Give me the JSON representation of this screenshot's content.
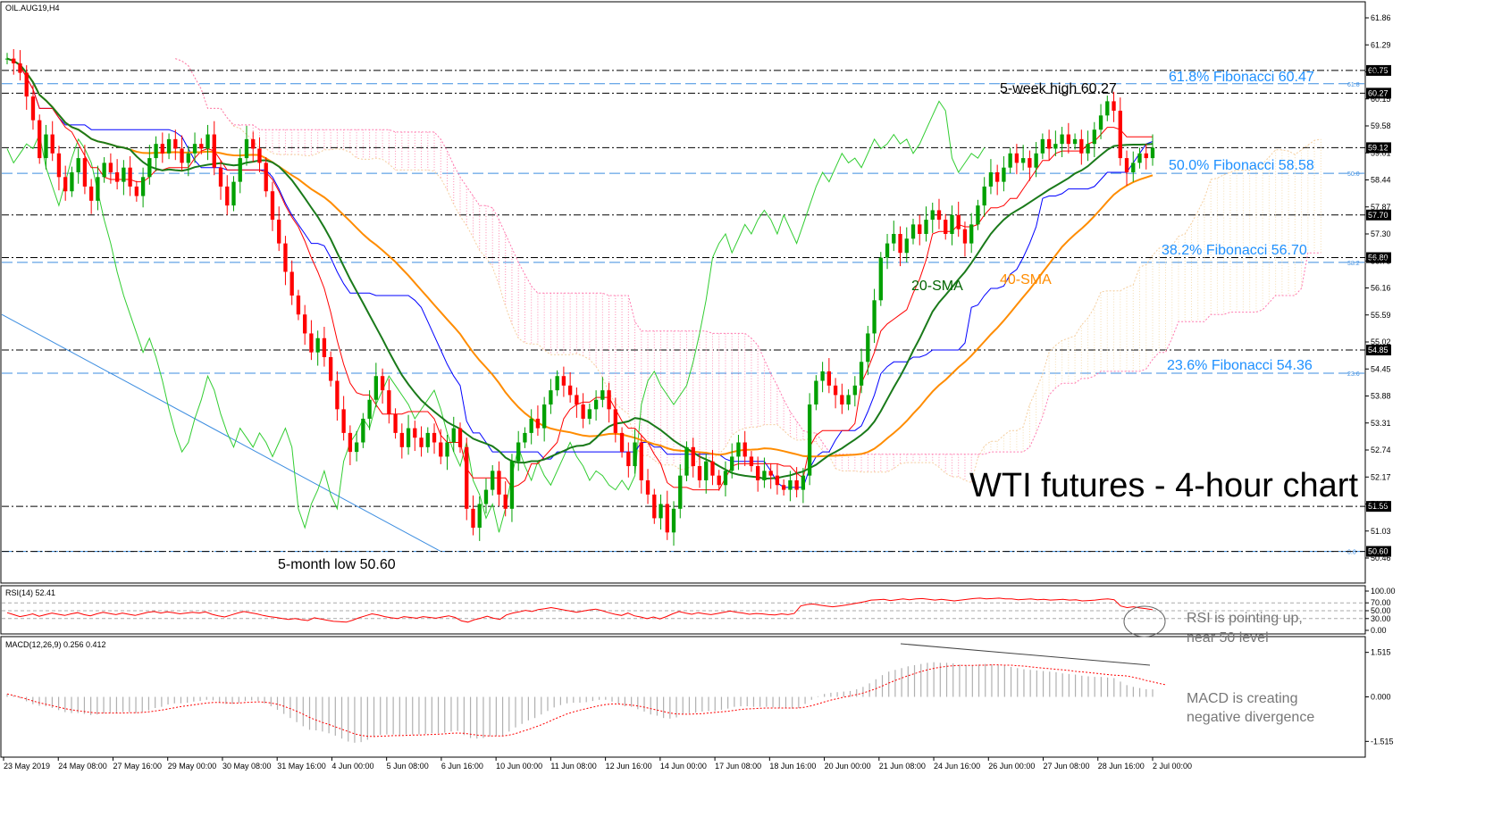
{
  "chart_data": [
    {
      "type": "candlestick",
      "symbol_label": "OIL.AUG19,H4",
      "title": "WTI futures - 4-hour chart",
      "y_ticks": [
        "61.86",
        "61.29",
        "60.72",
        "60.15",
        "59.58",
        "59.01",
        "58.44",
        "57.87",
        "57.30",
        "56.73",
        "56.16",
        "55.59",
        "55.02",
        "54.45",
        "53.88",
        "53.31",
        "52.74",
        "52.17",
        "51.60",
        "51.03",
        "50.46"
      ],
      "ylim": [
        50.3,
        62.1
      ],
      "x_ticks": [
        "23 May 2019",
        "24 May 08:00",
        "27 May 16:00",
        "29 May 00:00",
        "30 May 08:00",
        "31 May 16:00",
        "4 Jun 00:00",
        "5 Jun 08:00",
        "6 Jun 16:00",
        "10 Jun 00:00",
        "11 Jun 08:00",
        "12 Jun 16:00",
        "14 Jun 00:00",
        "17 Jun 08:00",
        "18 Jun 16:00",
        "20 Jun 00:00",
        "21 Jun 08:00",
        "24 Jun 16:00",
        "26 Jun 00:00",
        "27 Jun 08:00",
        "28 Jun 16:00",
        "2 Jul 00:00"
      ],
      "price_boxes": [
        {
          "value": 60.75,
          "label": "60.75"
        },
        {
          "value": 60.27,
          "label": "60.27"
        },
        {
          "value": 59.12,
          "label": "59.12"
        },
        {
          "value": 57.7,
          "label": "57.70"
        },
        {
          "value": 56.8,
          "label": "56.80"
        },
        {
          "value": 54.85,
          "label": "54.85"
        },
        {
          "value": 51.55,
          "label": "51.55"
        },
        {
          "value": 50.6,
          "label": "50.60"
        }
      ],
      "fibonacci": [
        {
          "value": 60.47,
          "label": "61.8% Fibonacci 60.47",
          "tag": "61.8"
        },
        {
          "value": 58.58,
          "label": "50.0% Fibonacci 58.58",
          "tag": "50.0"
        },
        {
          "value": 56.7,
          "label": "38.2% Fibonacci 56.70",
          "tag": "38.2"
        },
        {
          "value": 54.36,
          "label": "23.6% Fibonacci 54.36",
          "tag": "23.6"
        },
        {
          "value": 50.6,
          "label": "",
          "tag": "0.0"
        }
      ],
      "annotations": [
        {
          "text": "5-week high 60.27"
        },
        {
          "text": "5-month low 50.60"
        },
        {
          "text": "20-SMA"
        },
        {
          "text": "40-SMA"
        }
      ],
      "close": [
        61.0,
        60.9,
        60.7,
        60.2,
        59.7,
        58.9,
        59.4,
        59.0,
        58.5,
        58.2,
        58.6,
        58.9,
        58.3,
        58.0,
        58.5,
        58.8,
        58.6,
        58.4,
        58.7,
        58.3,
        58.1,
        58.5,
        58.9,
        59.2,
        59.0,
        59.3,
        59.1,
        58.8,
        59.0,
        59.2,
        59.1,
        59.4,
        58.7,
        58.3,
        57.9,
        58.4,
        58.9,
        59.3,
        59.1,
        58.8,
        58.2,
        57.6,
        57.1,
        56.5,
        56.0,
        55.6,
        55.2,
        54.8,
        55.1,
        54.7,
        54.2,
        53.6,
        53.1,
        52.7,
        52.9,
        53.4,
        53.8,
        54.3,
        54.0,
        53.5,
        53.1,
        52.8,
        53.2,
        53.0,
        52.8,
        53.1,
        52.9,
        52.6,
        52.9,
        53.2,
        52.8,
        51.5,
        51.1,
        51.6,
        51.9,
        52.3,
        51.8,
        51.5,
        52.5,
        52.9,
        53.1,
        53.4,
        53.2,
        53.7,
        54.0,
        54.3,
        54.1,
        53.9,
        53.7,
        53.4,
        53.6,
        53.8,
        54.0,
        53.6,
        53.1,
        52.7,
        52.4,
        52.9,
        52.1,
        51.8,
        51.3,
        51.6,
        51.0,
        51.5,
        52.2,
        52.8,
        52.4,
        52.1,
        52.5,
        52.2,
        52.0,
        52.3,
        52.6,
        52.9,
        52.6,
        52.4,
        52.1,
        52.3,
        52.2,
        52.0,
        51.9,
        52.1,
        51.9,
        52.2,
        53.7,
        54.2,
        54.4,
        54.1,
        53.9,
        53.7,
        53.9,
        54.1,
        54.6,
        55.2,
        55.9,
        56.8,
        57.1,
        57.3,
        56.9,
        57.2,
        57.5,
        57.3,
        57.6,
        57.8,
        57.6,
        57.3,
        57.7,
        57.4,
        57.1,
        57.5,
        57.9,
        58.3,
        58.6,
        58.4,
        58.7,
        59.0,
        58.8,
        58.9,
        58.7,
        59.0,
        59.3,
        59.1,
        59.2,
        59.4,
        59.2,
        59.3,
        59.0,
        59.2,
        59.5,
        59.8,
        60.1,
        59.9,
        58.9,
        58.6,
        58.8,
        59.0,
        58.9,
        59.12
      ]
    },
    {
      "type": "line",
      "label": "RSI(14) 52.41",
      "y_ticks": [
        "100.00",
        "70.00",
        "50.00",
        "30.00",
        "0.00"
      ],
      "ylim": [
        0,
        100
      ],
      "annotation": "RSI is pointing up, near 50 level",
      "values": [
        45,
        40,
        35,
        38,
        42,
        36,
        40,
        44,
        41,
        38,
        42,
        45,
        40,
        37,
        42,
        46,
        43,
        40,
        44,
        41,
        38,
        42,
        46,
        48,
        44,
        47,
        45,
        42,
        44,
        46,
        44,
        47,
        41,
        37,
        34,
        39,
        44,
        48,
        45,
        42,
        38,
        35,
        33,
        30,
        28,
        30,
        27,
        25,
        32,
        29,
        26,
        23,
        22,
        21,
        26,
        32,
        37,
        42,
        39,
        35,
        32,
        30,
        35,
        33,
        31,
        35,
        33,
        31,
        34,
        37,
        33,
        24,
        21,
        27,
        31,
        36,
        31,
        28,
        39,
        44,
        47,
        51,
        48,
        53,
        55,
        58,
        55,
        52,
        49,
        46,
        49,
        52,
        54,
        50,
        45,
        41,
        38,
        44,
        37,
        34,
        30,
        34,
        29,
        35,
        42,
        48,
        44,
        41,
        45,
        42,
        40,
        43,
        46,
        49,
        46,
        44,
        41,
        43,
        42,
        40,
        39,
        42,
        40,
        43,
        62,
        66,
        67,
        64,
        62,
        60,
        62,
        64,
        67,
        70,
        73,
        77,
        78,
        79,
        76,
        78,
        80,
        78,
        80,
        81,
        79,
        77,
        79,
        77,
        75,
        77,
        79,
        81,
        82,
        80,
        81,
        82,
        80,
        80,
        78,
        79,
        80,
        78,
        79,
        77,
        78,
        79,
        77,
        78,
        75,
        76,
        77,
        79,
        80,
        78,
        62,
        58,
        60,
        57,
        55,
        52.41
      ]
    },
    {
      "type": "bar",
      "label": "MACD(12,26,9) 0.256 0.412",
      "y_ticks": [
        "1.515",
        "0.000",
        "-1.515"
      ],
      "ylim": [
        -1.9,
        1.9
      ],
      "annotation": "MACD is creating negative divergence",
      "values": [
        0.1,
        0.05,
        -0.05,
        -0.15,
        -0.25,
        -0.3,
        -0.32,
        -0.38,
        -0.45,
        -0.52,
        -0.55,
        -0.55,
        -0.58,
        -0.62,
        -0.6,
        -0.56,
        -0.55,
        -0.56,
        -0.52,
        -0.52,
        -0.55,
        -0.52,
        -0.46,
        -0.38,
        -0.34,
        -0.26,
        -0.22,
        -0.22,
        -0.2,
        -0.16,
        -0.14,
        -0.1,
        -0.12,
        -0.18,
        -0.24,
        -0.24,
        -0.2,
        -0.14,
        -0.12,
        -0.14,
        -0.22,
        -0.32,
        -0.44,
        -0.58,
        -0.72,
        -0.86,
        -1.0,
        -1.12,
        -1.14,
        -1.18,
        -1.24,
        -1.32,
        -1.42,
        -1.52,
        -1.56,
        -1.54,
        -1.46,
        -1.36,
        -1.3,
        -1.28,
        -1.28,
        -1.3,
        -1.28,
        -1.28,
        -1.28,
        -1.26,
        -1.24,
        -1.24,
        -1.22,
        -1.18,
        -1.16,
        -1.3,
        -1.4,
        -1.42,
        -1.4,
        -1.34,
        -1.32,
        -1.32,
        -1.18,
        -1.04,
        -0.92,
        -0.8,
        -0.72,
        -0.6,
        -0.48,
        -0.36,
        -0.28,
        -0.22,
        -0.2,
        -0.2,
        -0.18,
        -0.14,
        -0.1,
        -0.1,
        -0.16,
        -0.24,
        -0.32,
        -0.34,
        -0.42,
        -0.5,
        -0.6,
        -0.64,
        -0.72,
        -0.74,
        -0.7,
        -0.6,
        -0.56,
        -0.54,
        -0.5,
        -0.48,
        -0.48,
        -0.44,
        -0.4,
        -0.34,
        -0.32,
        -0.32,
        -0.34,
        -0.34,
        -0.34,
        -0.36,
        -0.38,
        -0.38,
        -0.4,
        -0.38,
        -0.24,
        -0.1,
        0.02,
        0.1,
        0.14,
        0.16,
        0.18,
        0.2,
        0.26,
        0.34,
        0.46,
        0.6,
        0.74,
        0.86,
        0.92,
        0.98,
        1.04,
        1.08,
        1.12,
        1.16,
        1.18,
        1.16,
        1.16,
        1.14,
        1.1,
        1.08,
        1.08,
        1.1,
        1.12,
        1.1,
        1.08,
        1.06,
        1.02,
        0.98,
        0.94,
        0.92,
        0.9,
        0.88,
        0.86,
        0.84,
        0.8,
        0.78,
        0.76,
        0.72,
        0.7,
        0.68,
        0.68,
        0.66,
        0.64,
        0.52,
        0.4,
        0.34,
        0.3,
        0.26,
        0.256
      ],
      "signal": [
        0.1,
        0.05,
        -0.01,
        -0.07,
        -0.14,
        -0.2,
        -0.25,
        -0.3,
        -0.35,
        -0.4,
        -0.44,
        -0.47,
        -0.5,
        -0.53,
        -0.55,
        -0.55,
        -0.55,
        -0.55,
        -0.55,
        -0.54,
        -0.54,
        -0.53,
        -0.51,
        -0.48,
        -0.45,
        -0.41,
        -0.37,
        -0.33,
        -0.3,
        -0.27,
        -0.24,
        -0.21,
        -0.19,
        -0.19,
        -0.2,
        -0.21,
        -0.21,
        -0.19,
        -0.18,
        -0.17,
        -0.18,
        -0.21,
        -0.25,
        -0.32,
        -0.4,
        -0.49,
        -0.59,
        -0.7,
        -0.79,
        -0.87,
        -0.94,
        -1.02,
        -1.1,
        -1.18,
        -1.26,
        -1.31,
        -1.34,
        -1.35,
        -1.34,
        -1.33,
        -1.32,
        -1.32,
        -1.31,
        -1.3,
        -1.3,
        -1.29,
        -1.28,
        -1.27,
        -1.26,
        -1.24,
        -1.23,
        -1.24,
        -1.27,
        -1.3,
        -1.32,
        -1.33,
        -1.33,
        -1.33,
        -1.3,
        -1.25,
        -1.18,
        -1.11,
        -1.03,
        -0.95,
        -0.86,
        -0.76,
        -0.67,
        -0.58,
        -0.51,
        -0.45,
        -0.4,
        -0.35,
        -0.3,
        -0.26,
        -0.24,
        -0.24,
        -0.26,
        -0.28,
        -0.31,
        -0.35,
        -0.4,
        -0.45,
        -0.5,
        -0.55,
        -0.58,
        -0.59,
        -0.59,
        -0.58,
        -0.57,
        -0.55,
        -0.53,
        -0.51,
        -0.49,
        -0.46,
        -0.43,
        -0.41,
        -0.4,
        -0.39,
        -0.38,
        -0.38,
        -0.38,
        -0.38,
        -0.38,
        -0.38,
        -0.35,
        -0.3,
        -0.24,
        -0.17,
        -0.11,
        -0.06,
        -0.01,
        0.03,
        0.08,
        0.13,
        0.2,
        0.28,
        0.37,
        0.47,
        0.56,
        0.64,
        0.72,
        0.79,
        0.86,
        0.92,
        0.97,
        1.01,
        1.04,
        1.06,
        1.07,
        1.07,
        1.07,
        1.08,
        1.08,
        1.09,
        1.09,
        1.08,
        1.08,
        1.06,
        1.05,
        1.02,
        1.0,
        0.98,
        0.96,
        0.94,
        0.92,
        0.9,
        0.87,
        0.85,
        0.83,
        0.81,
        0.78,
        0.76,
        0.74,
        0.73,
        0.71,
        0.67,
        0.62,
        0.56,
        0.51,
        0.46,
        0.412
      ]
    }
  ]
}
